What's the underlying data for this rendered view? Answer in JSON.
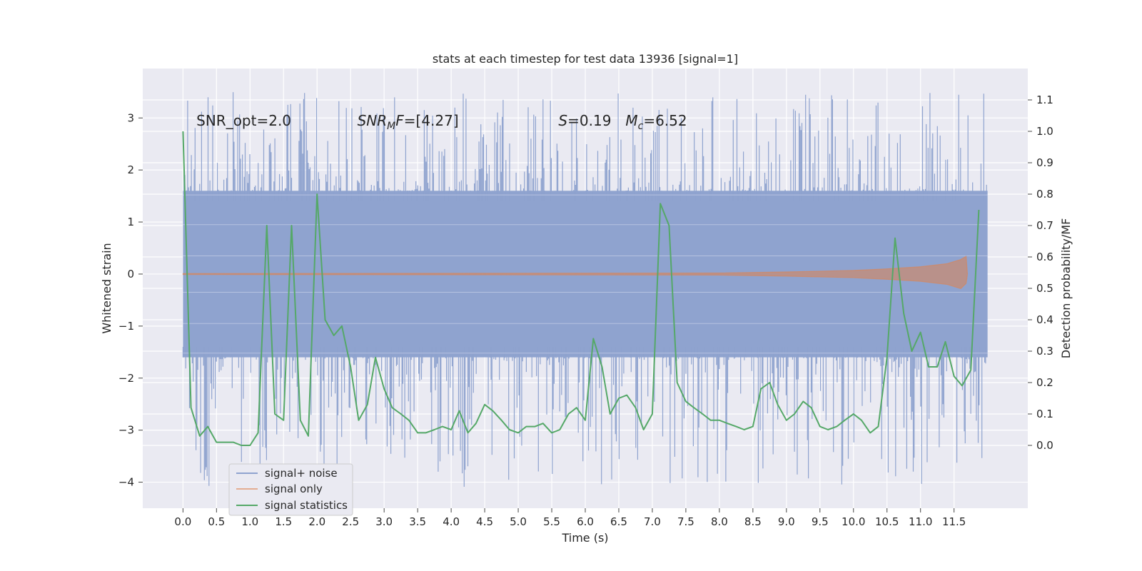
{
  "chart_data": {
    "type": "line",
    "title": "stats at each timestep for test data 13936 [signal=1]",
    "xlabel": "Time (s)",
    "ylabel": "Whitened strain",
    "ylabel_right": "Detection probability/MF",
    "xlim": [
      -0.6,
      12.6
    ],
    "ylim": [
      -4.5,
      3.95
    ],
    "ylim_right": [
      -0.2,
      1.2
    ],
    "x_ticks": [
      "0.0",
      "0.5",
      "1.0",
      "1.5",
      "2.0",
      "2.5",
      "3.0",
      "3.5",
      "4.0",
      "4.5",
      "5.0",
      "5.5",
      "6.0",
      "6.5",
      "7.0",
      "7.5",
      "8.0",
      "8.5",
      "9.0",
      "9.5",
      "10.0",
      "10.5",
      "11.0",
      "11.5"
    ],
    "y_ticks": [
      "3",
      "2",
      "1",
      "0",
      "−1",
      "−2",
      "−3",
      "−4"
    ],
    "y_ticks_right": [
      "1.1",
      "1.0",
      "0.9",
      "0.8",
      "0.7",
      "0.6",
      "0.5",
      "0.4",
      "0.3",
      "0.2",
      "0.1",
      "0.0"
    ],
    "grid": true,
    "legend_position": "lower-left",
    "annotations": [
      {
        "prefix": "SNR_opt=2.0",
        "x": 0.2,
        "y": 2.85
      },
      {
        "prefix": "SNR",
        "sub": "M",
        "suffix": "F=[4.27]",
        "x": 2.6,
        "y": 2.85
      },
      {
        "prefix": "S",
        "suffix": "=0.19",
        "x": 5.6,
        "y": 2.85
      },
      {
        "prefix": "M",
        "sub": "c",
        "suffix": "=6.52",
        "x": 6.6,
        "y": 2.85
      }
    ],
    "series": [
      {
        "name": "signal+ noise",
        "color": "#8fa3cf",
        "axis": "left",
        "t_range": [
          0.0,
          12.0
        ],
        "band_low": -1.6,
        "band_high": 1.6,
        "spike_max": 3.5,
        "spike_min": -4.1
      },
      {
        "name": "signal only",
        "color": "#dd8452",
        "axis": "left",
        "x": [
          0.0,
          8.0,
          9.0,
          10.0,
          10.5,
          11.0,
          11.4,
          11.6,
          11.68,
          11.7
        ],
        "upper": [
          0.01,
          0.02,
          0.04,
          0.07,
          0.1,
          0.14,
          0.2,
          0.28,
          0.34,
          0.0
        ],
        "lower": [
          -0.01,
          -0.02,
          -0.04,
          -0.07,
          -0.1,
          -0.14,
          -0.2,
          -0.28,
          -0.18,
          0.0
        ]
      },
      {
        "name": "signal statistics",
        "color": "#55a868",
        "axis": "right",
        "x": [
          0.0,
          0.12,
          0.25,
          0.37,
          0.5,
          0.62,
          0.75,
          0.87,
          1.0,
          1.12,
          1.25,
          1.37,
          1.5,
          1.62,
          1.75,
          1.87,
          2.0,
          2.12,
          2.25,
          2.37,
          2.5,
          2.62,
          2.75,
          2.87,
          3.0,
          3.12,
          3.25,
          3.37,
          3.5,
          3.62,
          3.75,
          3.87,
          4.0,
          4.12,
          4.25,
          4.37,
          4.5,
          4.62,
          4.75,
          4.87,
          5.0,
          5.12,
          5.25,
          5.37,
          5.5,
          5.62,
          5.75,
          5.87,
          6.0,
          6.12,
          6.25,
          6.37,
          6.5,
          6.62,
          6.75,
          6.87,
          7.0,
          7.12,
          7.25,
          7.37,
          7.5,
          7.62,
          7.75,
          7.87,
          8.0,
          8.12,
          8.25,
          8.37,
          8.5,
          8.62,
          8.75,
          8.87,
          9.0,
          9.12,
          9.25,
          9.37,
          9.5,
          9.62,
          9.75,
          9.87,
          10.0,
          10.12,
          10.25,
          10.37,
          10.5,
          10.62,
          10.75,
          10.87,
          11.0,
          11.12,
          11.25,
          11.37,
          11.5,
          11.62,
          11.75,
          11.87
        ],
        "values": [
          1.0,
          0.12,
          0.03,
          0.06,
          0.01,
          0.01,
          0.01,
          0.0,
          0.0,
          0.04,
          0.7,
          0.1,
          0.08,
          0.7,
          0.08,
          0.03,
          0.8,
          0.4,
          0.35,
          0.38,
          0.25,
          0.08,
          0.13,
          0.28,
          0.18,
          0.12,
          0.1,
          0.08,
          0.04,
          0.04,
          0.05,
          0.06,
          0.05,
          0.11,
          0.04,
          0.07,
          0.13,
          0.11,
          0.08,
          0.05,
          0.04,
          0.06,
          0.06,
          0.07,
          0.04,
          0.05,
          0.1,
          0.12,
          0.08,
          0.34,
          0.25,
          0.1,
          0.15,
          0.16,
          0.12,
          0.05,
          0.1,
          0.77,
          0.7,
          0.2,
          0.14,
          0.12,
          0.1,
          0.08,
          0.08,
          0.07,
          0.06,
          0.05,
          0.06,
          0.18,
          0.2,
          0.13,
          0.08,
          0.1,
          0.14,
          0.12,
          0.06,
          0.05,
          0.06,
          0.08,
          0.1,
          0.08,
          0.04,
          0.06,
          0.28,
          0.66,
          0.42,
          0.3,
          0.36,
          0.25,
          0.25,
          0.33,
          0.22,
          0.19,
          0.24,
          0.75
        ]
      }
    ]
  }
}
